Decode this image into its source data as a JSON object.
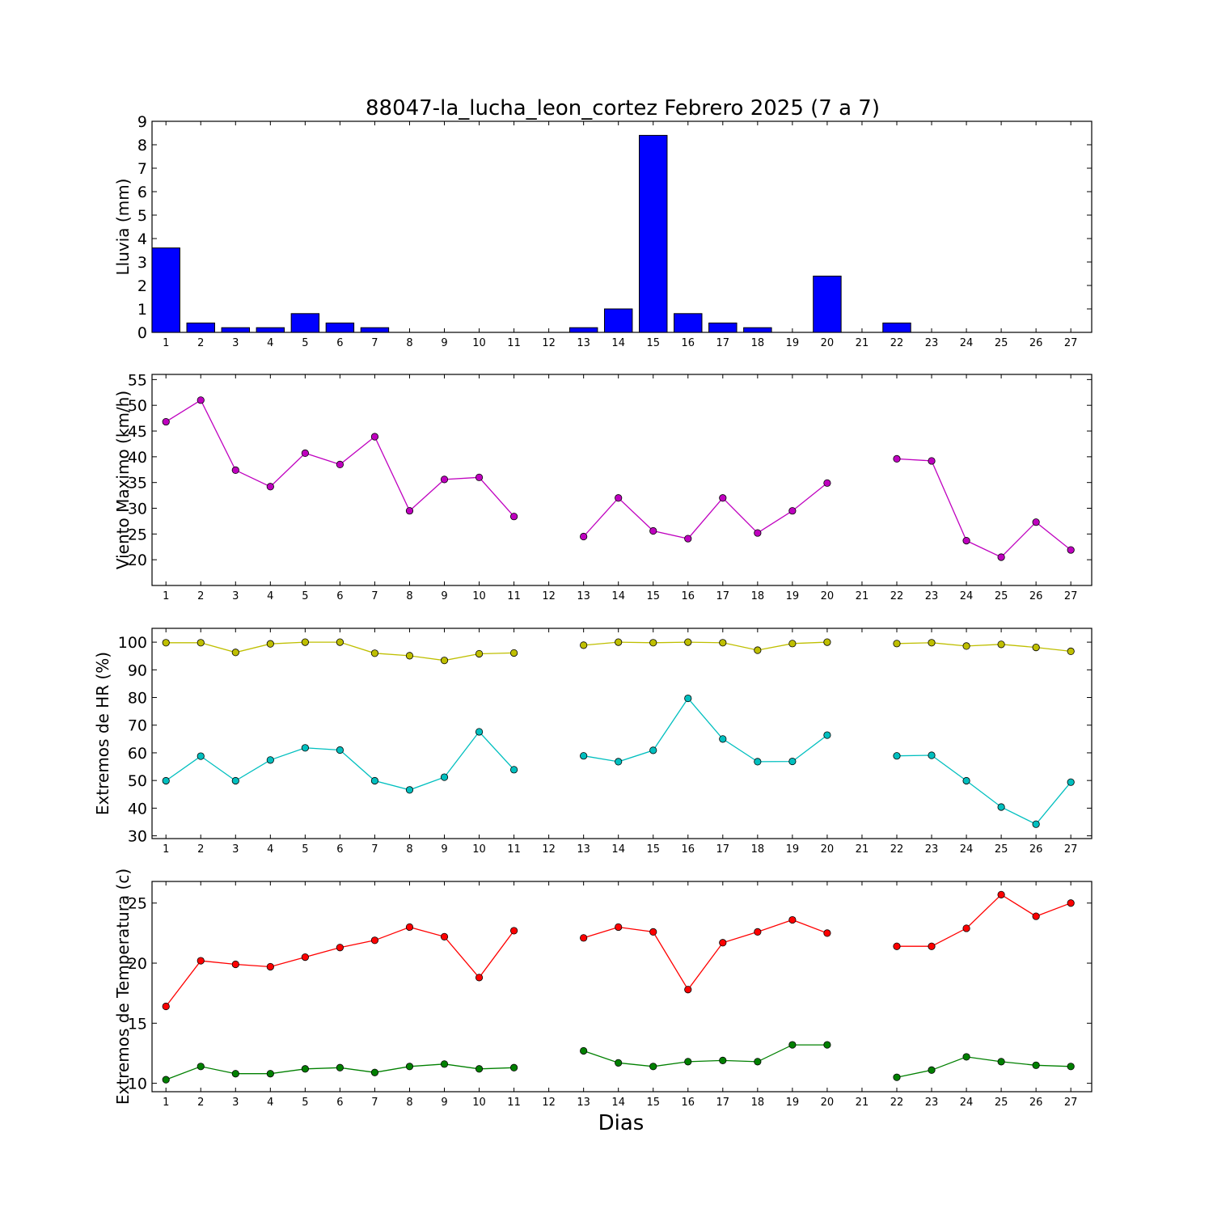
{
  "chart_data": {
    "type": "multi-panel",
    "title": "88047-la_lucha_leon_cortez Febrero 2025  (7 a 7)",
    "xlabel": "Dias",
    "days": [
      1,
      2,
      3,
      4,
      5,
      6,
      7,
      8,
      9,
      10,
      11,
      12,
      13,
      14,
      15,
      16,
      17,
      18,
      19,
      20,
      21,
      22,
      23,
      24,
      25,
      26,
      27
    ],
    "panels": [
      {
        "id": "lluvia",
        "type": "bar",
        "ylabel": "Lluvia (mm)",
        "ylim": [
          0,
          9
        ],
        "yticks": [
          0,
          1,
          2,
          3,
          4,
          5,
          6,
          7,
          8,
          9
        ],
        "series": [
          {
            "color": "#0000ff",
            "values": [
              3.6,
              0.4,
              0.2,
              0.2,
              0.8,
              0.4,
              0.2,
              0,
              0,
              0,
              0,
              0,
              0.2,
              1.0,
              8.4,
              0.8,
              0.4,
              0.2,
              0,
              2.4,
              0,
              0.4,
              0,
              0,
              0,
              0,
              0
            ]
          }
        ]
      },
      {
        "id": "viento",
        "type": "line",
        "ylabel": "Viento Maximo (km/h)",
        "ylim": [
          15,
          56
        ],
        "yticks": [
          20,
          25,
          30,
          35,
          40,
          45,
          50,
          55
        ],
        "series": [
          {
            "color": "#bf00bf",
            "values": [
              46.8,
              51.0,
              37.4,
              34.2,
              40.7,
              38.5,
              43.9,
              29.5,
              35.6,
              36.0,
              28.4,
              null,
              24.5,
              32.0,
              25.6,
              24.1,
              32.0,
              25.2,
              29.5,
              34.9,
              null,
              39.6,
              39.2,
              23.7,
              20.5,
              27.3,
              21.9
            ]
          }
        ]
      },
      {
        "id": "hr",
        "type": "line",
        "ylabel": "Extremos de HR (%)",
        "ylim": [
          29,
          105
        ],
        "yticks": [
          30,
          40,
          50,
          60,
          70,
          80,
          90,
          100
        ],
        "series": [
          {
            "color": "#bfbf00",
            "values": [
              99.8,
              99.8,
              96.3,
              99.4,
              100,
              100,
              96.0,
              95.1,
              93.4,
              95.8,
              96.1,
              null,
              98.9,
              100,
              99.8,
              100,
              99.8,
              97.1,
              99.5,
              100,
              null,
              99.5,
              99.8,
              98.6,
              99.2,
              98.1,
              96.7
            ]
          },
          {
            "color": "#00bfbf",
            "values": [
              49.9,
              58.8,
              49.9,
              57.4,
              61.8,
              61.0,
              49.9,
              46.6,
              51.2,
              67.6,
              53.9,
              null,
              58.9,
              56.8,
              60.9,
              79.7,
              65.0,
              56.8,
              56.9,
              66.4,
              null,
              58.9,
              59.1,
              49.9,
              40.4,
              34.2,
              49.4
            ]
          }
        ]
      },
      {
        "id": "temp",
        "type": "line",
        "ylabel": "Extremos de Temperatura (c)",
        "ylim": [
          9.3,
          26.8
        ],
        "yticks": [
          10,
          15,
          20,
          25
        ],
        "series": [
          {
            "color": "#ff0000",
            "values": [
              16.4,
              20.2,
              19.9,
              19.7,
              20.5,
              21.3,
              21.9,
              23.0,
              22.2,
              18.8,
              22.7,
              null,
              22.1,
              23.0,
              22.6,
              17.8,
              21.7,
              22.6,
              23.6,
              22.5,
              null,
              21.4,
              21.4,
              22.9,
              25.7,
              23.9,
              25.0
            ]
          },
          {
            "color": "#008000",
            "values": [
              10.3,
              11.4,
              10.8,
              10.8,
              11.2,
              11.3,
              10.9,
              11.4,
              11.6,
              11.2,
              11.3,
              null,
              12.7,
              11.7,
              11.4,
              11.8,
              11.9,
              11.8,
              13.2,
              13.2,
              null,
              10.5,
              11.1,
              12.2,
              11.8,
              11.5,
              11.4
            ]
          }
        ]
      }
    ]
  }
}
